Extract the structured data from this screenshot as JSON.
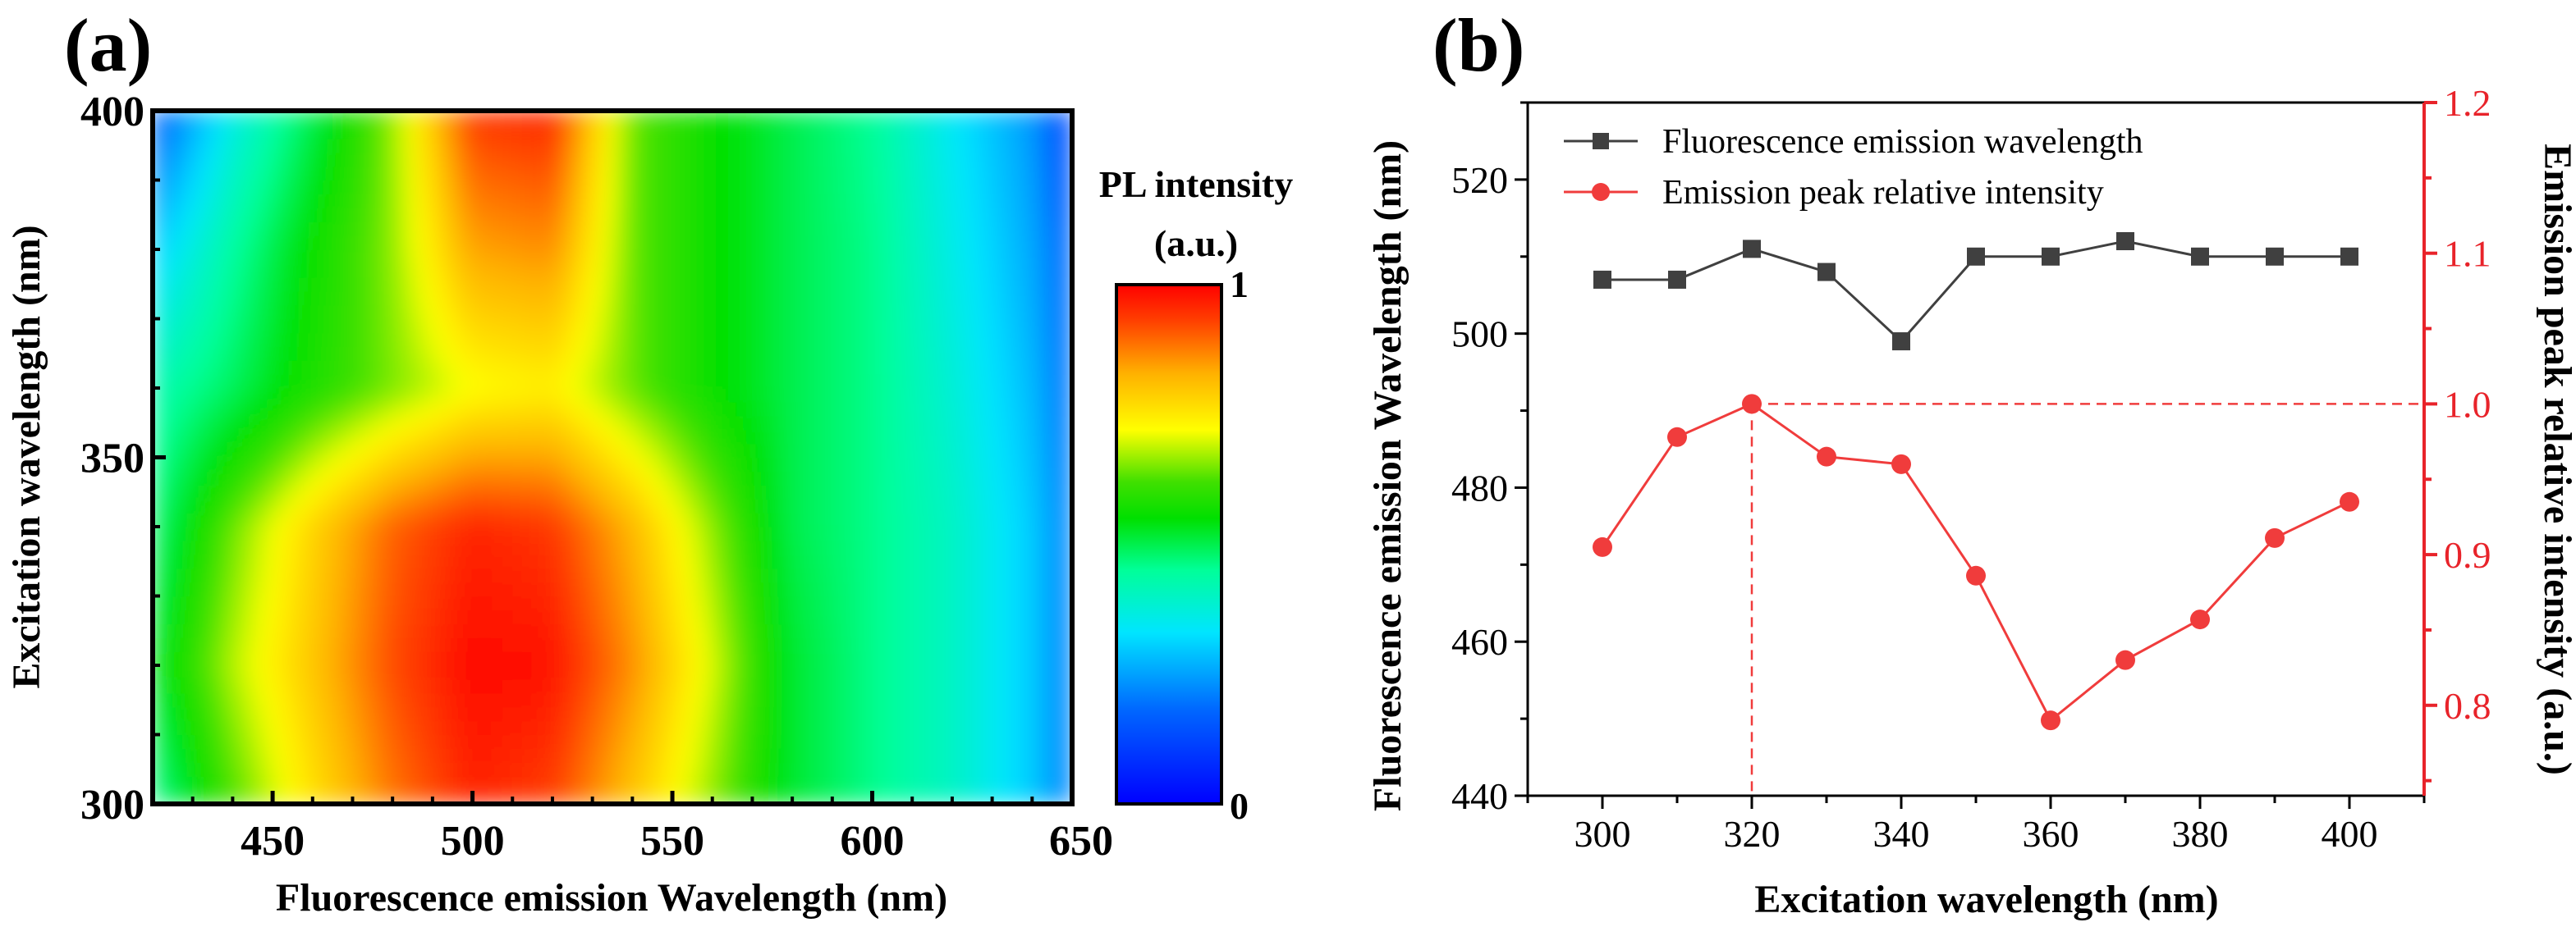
{
  "colors": {
    "black_series": "#404040",
    "red_series": "#f03c3c",
    "red_axis": "#e8232a",
    "axis": "#000000"
  },
  "chart_data": [
    {
      "panel_label": "(a)",
      "type": "heatmap",
      "title": "",
      "xlabel": "Fluorescence emission Wavelength (nm)",
      "ylabel": "Excitation wavelength (nm)",
      "xlim": [
        420,
        650
      ],
      "ylim": [
        300,
        400
      ],
      "xticks": [
        "450",
        "500",
        "550",
        "600",
        "650"
      ],
      "yticks": [
        "300",
        "350",
        "400"
      ],
      "x": [
        420,
        440,
        460,
        480,
        500,
        520,
        540,
        560,
        580,
        600,
        620,
        640,
        650
      ],
      "y": [
        300,
        320,
        340,
        360,
        380,
        400
      ],
      "z": [
        [
          0.45,
          0.62,
          0.76,
          0.88,
          0.96,
          0.93,
          0.8,
          0.66,
          0.52,
          0.46,
          0.4,
          0.3,
          0.2
        ],
        [
          0.52,
          0.68,
          0.8,
          0.92,
          0.99,
          0.98,
          0.86,
          0.7,
          0.52,
          0.46,
          0.4,
          0.3,
          0.2
        ],
        [
          0.47,
          0.64,
          0.78,
          0.9,
          0.96,
          0.94,
          0.82,
          0.66,
          0.5,
          0.46,
          0.4,
          0.3,
          0.2
        ],
        [
          0.42,
          0.49,
          0.58,
          0.65,
          0.72,
          0.74,
          0.64,
          0.56,
          0.5,
          0.46,
          0.38,
          0.28,
          0.18
        ],
        [
          0.3,
          0.44,
          0.56,
          0.66,
          0.84,
          0.86,
          0.64,
          0.56,
          0.5,
          0.46,
          0.36,
          0.26,
          0.16
        ],
        [
          0.15,
          0.36,
          0.5,
          0.66,
          0.94,
          0.96,
          0.64,
          0.56,
          0.5,
          0.45,
          0.34,
          0.24,
          0.1
        ]
      ],
      "colorbar": {
        "title_line1": "PL intensity",
        "title_line2": "(a.u.)",
        "min_label": "0",
        "max_label": "1"
      }
    },
    {
      "panel_label": "(b)",
      "type": "line",
      "title": "",
      "xlabel": "Excitation wavelength (nm)",
      "ylabel": "Fluorescence emission Wavelength (nm)",
      "ylabel_right": "Emission peak relative intensity (a.u.)",
      "xlim": [
        290,
        410
      ],
      "ylim": [
        440,
        530
      ],
      "ylim_right": [
        0.74,
        1.2
      ],
      "xticks": [
        "300",
        "320",
        "340",
        "360",
        "380",
        "400"
      ],
      "yticks": [
        "440",
        "460",
        "480",
        "500",
        "520"
      ],
      "yticks_right": [
        "0.8",
        "0.9",
        "1.0",
        "1.1",
        "1.2"
      ],
      "x": [
        300,
        310,
        320,
        330,
        340,
        350,
        360,
        370,
        380,
        390,
        400
      ],
      "series": [
        {
          "name": "Fluorescence emission wavelength",
          "axis": "left",
          "marker": "square",
          "values": [
            507,
            507,
            511,
            508,
            499,
            510,
            510,
            512,
            510,
            510,
            510
          ]
        },
        {
          "name": "Emission peak relative intensity",
          "axis": "right",
          "marker": "circle",
          "values": [
            0.905,
            0.978,
            1.0,
            0.965,
            0.96,
            0.886,
            0.79,
            0.83,
            0.857,
            0.911,
            0.935
          ]
        }
      ],
      "reference": {
        "x": 320,
        "y_right": 1.0
      },
      "legend": "top-left"
    }
  ]
}
